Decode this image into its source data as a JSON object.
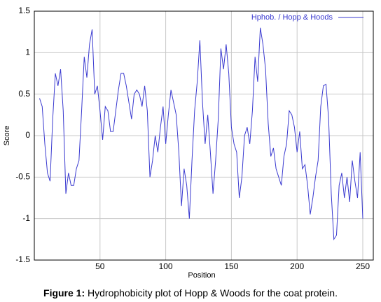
{
  "chart_data": {
    "type": "line",
    "xlabel": "Position",
    "ylabel": "Score",
    "x": [
      4,
      6,
      8,
      10,
      12,
      14,
      16,
      18,
      20,
      22,
      24,
      26,
      28,
      30,
      32,
      34,
      36,
      38,
      40,
      42,
      44,
      46,
      48,
      50,
      52,
      54,
      56,
      58,
      60,
      62,
      64,
      66,
      68,
      70,
      72,
      74,
      76,
      78,
      80,
      82,
      84,
      86,
      88,
      90,
      92,
      94,
      96,
      98,
      100,
      102,
      104,
      106,
      108,
      110,
      112,
      114,
      116,
      118,
      120,
      122,
      124,
      126,
      128,
      130,
      132,
      134,
      136,
      138,
      140,
      142,
      144,
      146,
      148,
      150,
      152,
      154,
      156,
      158,
      160,
      162,
      164,
      166,
      168,
      170,
      172,
      174,
      176,
      178,
      180,
      182,
      184,
      186,
      188,
      190,
      192,
      194,
      196,
      198,
      200,
      202,
      204,
      206,
      208,
      210,
      212,
      214,
      216,
      218,
      220,
      222,
      224,
      226,
      228,
      230,
      232,
      234,
      236,
      238,
      240,
      242,
      244,
      246,
      248,
      250
    ],
    "series": [
      {
        "name": "Hphob. / Hopp & Hoods",
        "color": "#3a3ad0",
        "values": [
          0.45,
          0.35,
          -0.1,
          -0.45,
          -0.55,
          0.2,
          0.75,
          0.6,
          0.8,
          0.3,
          -0.7,
          -0.45,
          -0.6,
          -0.6,
          -0.4,
          -0.3,
          0.3,
          0.95,
          0.7,
          1.1,
          1.28,
          0.5,
          0.6,
          0.3,
          -0.05,
          0.35,
          0.3,
          0.05,
          0.05,
          0.3,
          0.55,
          0.75,
          0.75,
          0.6,
          0.4,
          0.2,
          0.5,
          0.55,
          0.5,
          0.35,
          0.6,
          0.3,
          -0.5,
          -0.3,
          0.0,
          -0.2,
          0.1,
          0.35,
          -0.1,
          0.25,
          0.55,
          0.4,
          0.25,
          -0.2,
          -0.85,
          -0.4,
          -0.6,
          -1.0,
          -0.3,
          0.3,
          0.65,
          1.15,
          0.4,
          -0.1,
          0.25,
          -0.2,
          -0.7,
          -0.3,
          0.2,
          1.05,
          0.8,
          1.1,
          0.75,
          0.1,
          -0.1,
          -0.2,
          -0.75,
          -0.5,
          0.0,
          0.1,
          -0.1,
          0.3,
          0.95,
          0.65,
          1.3,
          1.1,
          0.8,
          0.15,
          -0.25,
          -0.15,
          -0.4,
          -0.5,
          -0.6,
          -0.25,
          -0.1,
          0.3,
          0.25,
          0.1,
          -0.2,
          0.05,
          -0.4,
          -0.35,
          -0.6,
          -0.95,
          -0.75,
          -0.5,
          -0.3,
          0.35,
          0.6,
          0.62,
          0.2,
          -0.7,
          -1.25,
          -1.2,
          -0.6,
          -0.45,
          -0.75,
          -0.5,
          -0.8,
          -0.3,
          -0.55,
          -0.75,
          -0.2,
          -1.0
        ]
      }
    ],
    "xlim": [
      0,
      258
    ],
    "xticks": [
      50,
      100,
      150,
      200,
      250
    ],
    "ylim": [
      -1.5,
      1.5
    ],
    "yticks": [
      1.5,
      1,
      0.5,
      0,
      -0.5,
      -1,
      -1.5
    ],
    "grid": true,
    "legend": "upper right"
  },
  "caption": {
    "label": "Figure 1:",
    "text": " Hydrophobicity plot of Hopp & Woods for the coat  protein."
  }
}
